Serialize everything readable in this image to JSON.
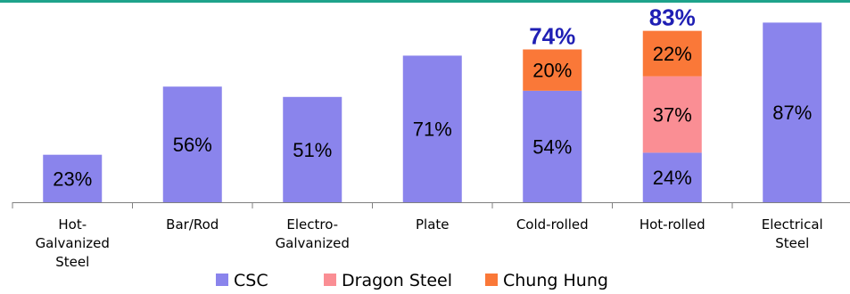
{
  "chart_data": {
    "type": "bar",
    "stacked": true,
    "categories": [
      [
        "Hot-",
        "Galvanized",
        "Steel"
      ],
      [
        "Bar/Rod"
      ],
      [
        "Electro-",
        "Galvanized"
      ],
      [
        "Plate"
      ],
      [
        "Cold-rolled"
      ],
      [
        "Hot-rolled"
      ],
      [
        "Electrical",
        "Steel"
      ]
    ],
    "series": [
      {
        "name": "CSC",
        "color": "#8a84ec",
        "values": [
          23,
          56,
          51,
          71,
          54,
          24,
          87
        ],
        "labels": [
          "23%",
          "56%",
          "51%",
          "71%",
          "54%",
          "24%",
          "87%"
        ]
      },
      {
        "name": "Dragon Steel",
        "color": "#fa8e94",
        "values": [
          null,
          null,
          null,
          null,
          null,
          37,
          null
        ],
        "labels": [
          null,
          null,
          null,
          null,
          null,
          "37%",
          null
        ]
      },
      {
        "name": "Chung Hung",
        "color": "#fa7838",
        "values": [
          null,
          null,
          null,
          null,
          20,
          22,
          null
        ],
        "labels": [
          null,
          null,
          null,
          null,
          "20%",
          "22%",
          null
        ]
      }
    ],
    "totals": [
      null,
      null,
      null,
      null,
      "74%",
      "83%",
      null
    ],
    "ylim": [
      0,
      95
    ],
    "grid": false,
    "legend": "bottom",
    "title": "",
    "xlabel": "",
    "ylabel": "",
    "colors": {
      "top_rule": "#1ea38b",
      "axis": "#808080",
      "total_text": "#1f1fb4"
    }
  }
}
